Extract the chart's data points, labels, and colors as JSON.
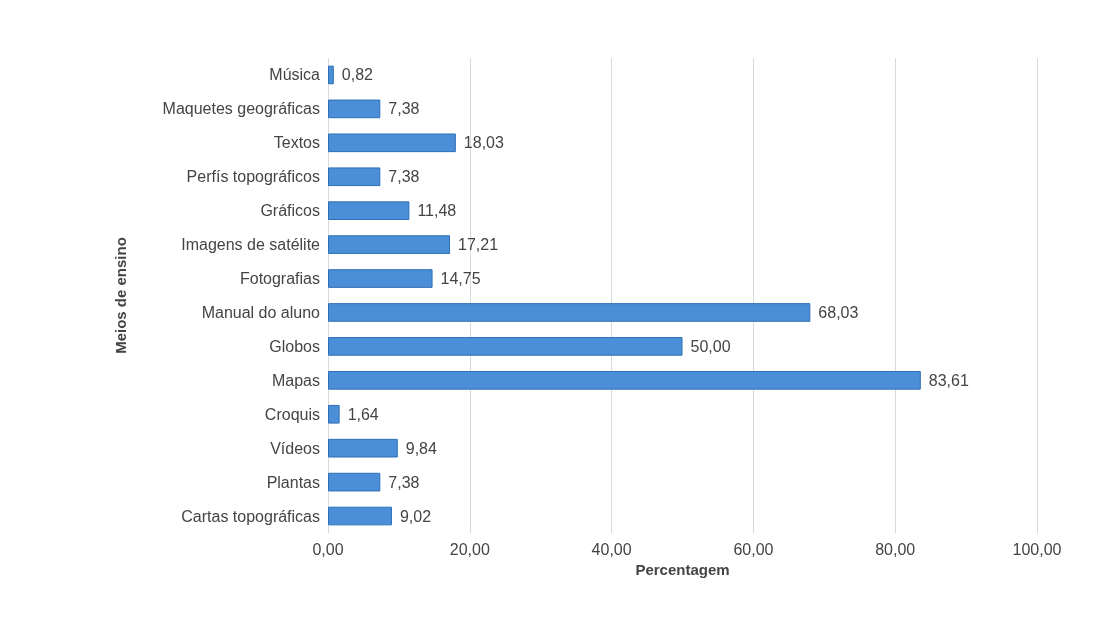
{
  "chart_data": {
    "type": "bar",
    "orientation": "horizontal",
    "xlabel": "Percentagem",
    "ylabel": "Meios de ensino",
    "categories": [
      "Música",
      "Maquetes geográficas",
      "Textos",
      "Perfís topográficos",
      "Gráficos",
      "Imagens de satélite",
      "Fotografias",
      "Manual do aluno",
      "Globos",
      "Mapas",
      "Croquis",
      "Vídeos",
      "Plantas",
      "Cartas topográficas"
    ],
    "values": [
      0.82,
      7.38,
      18.03,
      7.38,
      11.48,
      17.21,
      14.75,
      68.03,
      50.0,
      83.61,
      1.64,
      9.84,
      7.38,
      9.02
    ],
    "value_labels": [
      "0,82",
      "7,38",
      "18,03",
      "7,38",
      "11,48",
      "17,21",
      "14,75",
      "68,03",
      "50,00",
      "83,61",
      "1,64",
      "9,84",
      "7,38",
      "9,02"
    ],
    "color": "#4a8fd8",
    "xlim": [
      0,
      100
    ],
    "xticks": [
      {
        "value": 0,
        "label": "0,00"
      },
      {
        "value": 20,
        "label": "20,00"
      },
      {
        "value": 40,
        "label": "40,00"
      },
      {
        "value": 60,
        "label": "60,00"
      },
      {
        "value": 80,
        "label": "80,00"
      },
      {
        "value": 100,
        "label": "100,00"
      }
    ],
    "grid": "x"
  }
}
